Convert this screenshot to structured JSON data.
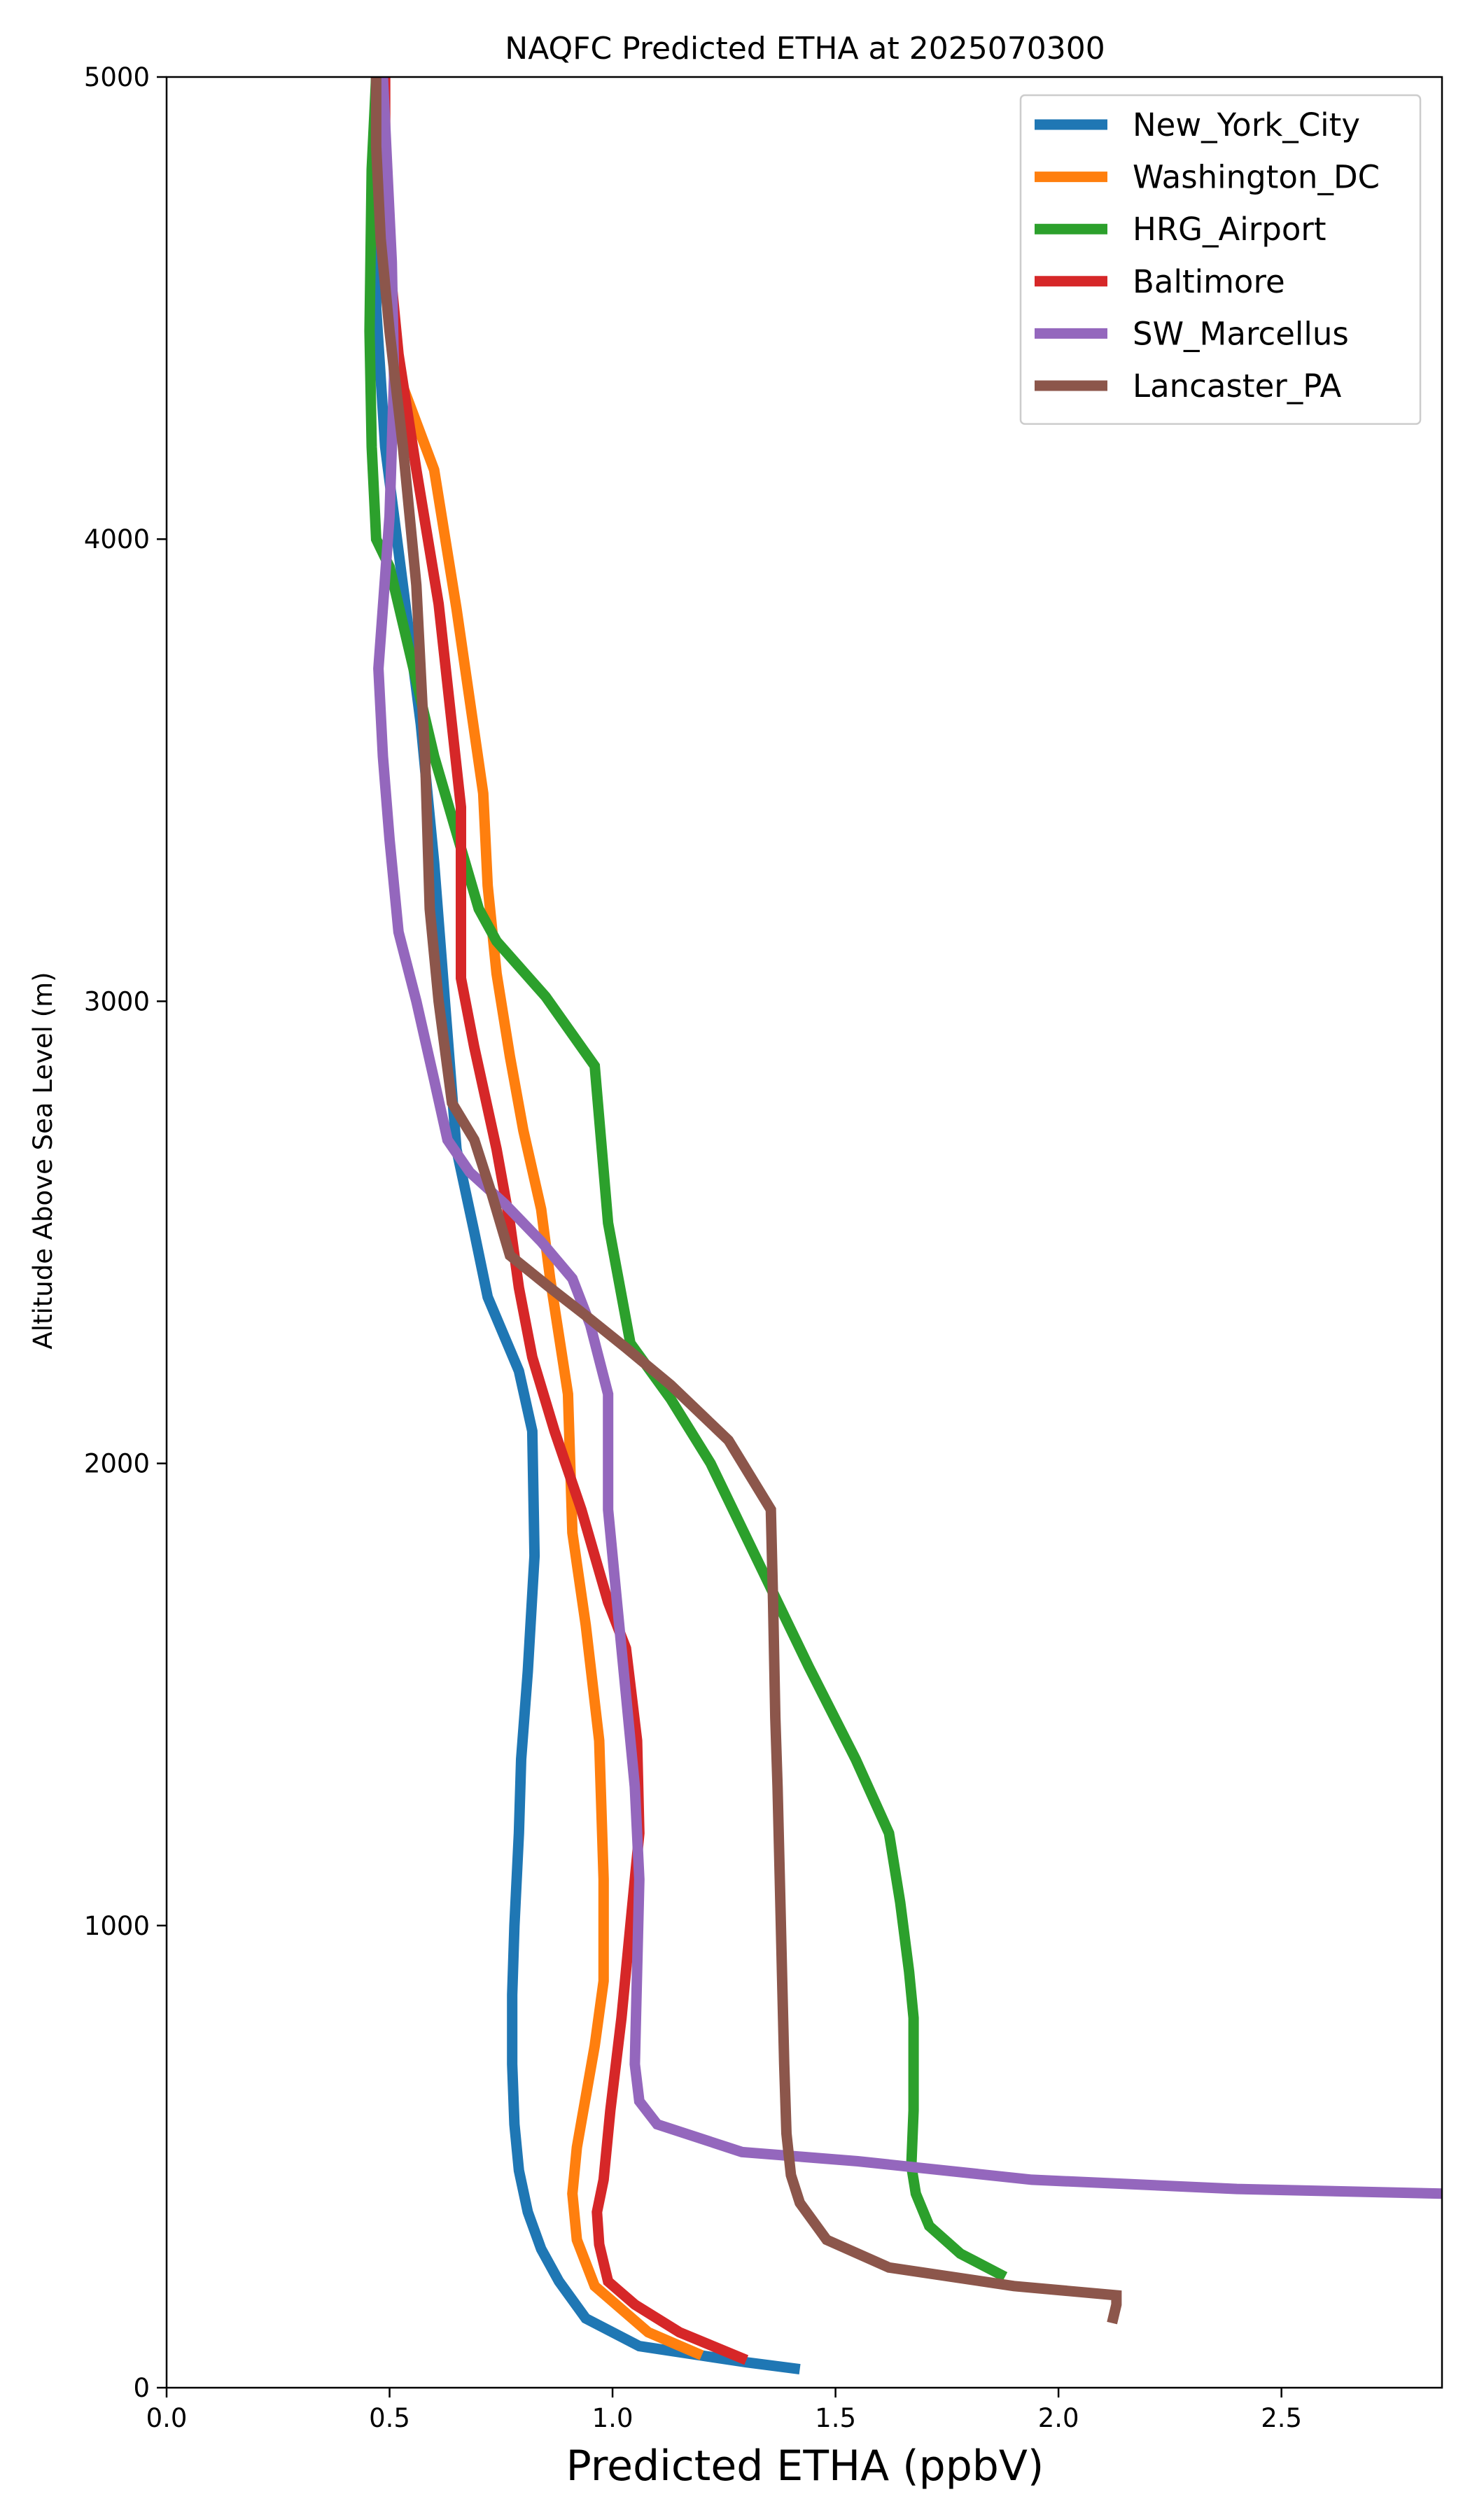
{
  "chart_data": {
    "type": "line",
    "title": "NAQFC Predicted ETHA at 2025070300",
    "xlabel": "Predicted ETHA (ppbV)",
    "ylabel": "Altitude Above Sea Level (m)",
    "xlim": [
      0.0,
      2.86
    ],
    "ylim": [
      0,
      5000
    ],
    "xticks": [
      "0.0",
      "0.5",
      "1.0",
      "1.5",
      "2.0",
      "2.5"
    ],
    "yticks": [
      "0",
      "1000",
      "2000",
      "3000",
      "4000",
      "5000"
    ],
    "grid": false,
    "legend_position": "top-right",
    "series": [
      {
        "name": "New_York_City",
        "color": "#1f77b4",
        "points": [
          [
            1.42,
            40
          ],
          [
            1.3,
            55
          ],
          [
            1.06,
            90
          ],
          [
            0.94,
            150
          ],
          [
            0.88,
            230
          ],
          [
            0.84,
            300
          ],
          [
            0.81,
            380
          ],
          [
            0.79,
            470
          ],
          [
            0.78,
            570
          ],
          [
            0.775,
            700
          ],
          [
            0.775,
            850
          ],
          [
            0.78,
            1000
          ],
          [
            0.79,
            1200
          ],
          [
            0.795,
            1360
          ],
          [
            0.81,
            1550
          ],
          [
            0.825,
            1800
          ],
          [
            0.82,
            2070
          ],
          [
            0.79,
            2200
          ],
          [
            0.72,
            2360
          ],
          [
            0.69,
            2500
          ],
          [
            0.65,
            2680
          ],
          [
            0.62,
            3050
          ],
          [
            0.6,
            3300
          ],
          [
            0.57,
            3600
          ],
          [
            0.53,
            3900
          ],
          [
            0.49,
            4200
          ],
          [
            0.47,
            4500
          ],
          [
            0.47,
            4800
          ],
          [
            0.47,
            5000
          ]
        ]
      },
      {
        "name": "Washington_DC",
        "color": "#ff7f0e",
        "points": [
          [
            1.2,
            70
          ],
          [
            1.08,
            120
          ],
          [
            0.96,
            220
          ],
          [
            0.92,
            320
          ],
          [
            0.91,
            420
          ],
          [
            0.92,
            520
          ],
          [
            0.96,
            740
          ],
          [
            0.98,
            880
          ],
          [
            0.98,
            1100
          ],
          [
            0.97,
            1400
          ],
          [
            0.94,
            1650
          ],
          [
            0.91,
            1850
          ],
          [
            0.9,
            2150
          ],
          [
            0.86,
            2400
          ],
          [
            0.84,
            2550
          ],
          [
            0.8,
            2720
          ],
          [
            0.77,
            2880
          ],
          [
            0.74,
            3060
          ],
          [
            0.72,
            3250
          ],
          [
            0.71,
            3450
          ],
          [
            0.65,
            3850
          ],
          [
            0.6,
            4150
          ],
          [
            0.53,
            4330
          ],
          [
            0.49,
            4600
          ],
          [
            0.47,
            4800
          ],
          [
            0.47,
            5000
          ]
        ]
      },
      {
        "name": "HRG_Airport",
        "color": "#2ca02c",
        "points": [
          [
            1.88,
            240
          ],
          [
            1.78,
            290
          ],
          [
            1.71,
            350
          ],
          [
            1.68,
            420
          ],
          [
            1.67,
            480
          ],
          [
            1.675,
            600
          ],
          [
            1.675,
            800
          ],
          [
            1.665,
            900
          ],
          [
            1.645,
            1050
          ],
          [
            1.62,
            1200
          ],
          [
            1.545,
            1360
          ],
          [
            1.44,
            1560
          ],
          [
            1.34,
            1760
          ],
          [
            1.22,
            2000
          ],
          [
            1.13,
            2140
          ],
          [
            1.04,
            2260
          ],
          [
            0.99,
            2520
          ],
          [
            0.96,
            2860
          ],
          [
            0.85,
            3010
          ],
          [
            0.74,
            3130
          ],
          [
            0.7,
            3200
          ],
          [
            0.6,
            3530
          ],
          [
            0.5,
            3940
          ],
          [
            0.47,
            4000
          ],
          [
            0.46,
            4200
          ],
          [
            0.455,
            4450
          ],
          [
            0.46,
            4800
          ],
          [
            0.47,
            5000
          ]
        ]
      },
      {
        "name": "Baltimore",
        "color": "#d62728",
        "points": [
          [
            1.3,
            60
          ],
          [
            1.15,
            120
          ],
          [
            1.05,
            180
          ],
          [
            0.99,
            230
          ],
          [
            0.97,
            310
          ],
          [
            0.965,
            380
          ],
          [
            0.98,
            450
          ],
          [
            0.995,
            600
          ],
          [
            1.02,
            800
          ],
          [
            1.04,
            1000
          ],
          [
            1.06,
            1200
          ],
          [
            1.055,
            1400
          ],
          [
            1.03,
            1600
          ],
          [
            0.99,
            1700
          ],
          [
            0.93,
            1900
          ],
          [
            0.87,
            2070
          ],
          [
            0.82,
            2230
          ],
          [
            0.79,
            2380
          ],
          [
            0.77,
            2520
          ],
          [
            0.74,
            2680
          ],
          [
            0.69,
            2900
          ],
          [
            0.66,
            3050
          ],
          [
            0.66,
            3420
          ],
          [
            0.61,
            3860
          ],
          [
            0.56,
            4150
          ],
          [
            0.52,
            4400
          ],
          [
            0.5,
            4600
          ],
          [
            0.49,
            4800
          ],
          [
            0.49,
            5000
          ]
        ]
      },
      {
        "name": "SW_Marcellus",
        "color": "#9467bd",
        "points": [
          [
            2.86,
            420
          ],
          [
            2.4,
            430
          ],
          [
            1.94,
            450
          ],
          [
            1.55,
            490
          ],
          [
            1.29,
            510
          ],
          [
            1.1,
            570
          ],
          [
            1.06,
            620
          ],
          [
            1.05,
            700
          ],
          [
            1.055,
            900
          ],
          [
            1.06,
            1100
          ],
          [
            1.05,
            1300
          ],
          [
            1.03,
            1500
          ],
          [
            1.01,
            1700
          ],
          [
            0.99,
            1900
          ],
          [
            0.99,
            2150
          ],
          [
            0.95,
            2300
          ],
          [
            0.91,
            2400
          ],
          [
            0.84,
            2480
          ],
          [
            0.76,
            2560
          ],
          [
            0.68,
            2630
          ],
          [
            0.63,
            2700
          ],
          [
            0.6,
            2830
          ],
          [
            0.56,
            3000
          ],
          [
            0.52,
            3150
          ],
          [
            0.5,
            3350
          ],
          [
            0.485,
            3530
          ],
          [
            0.475,
            3720
          ],
          [
            0.5,
            4050
          ],
          [
            0.51,
            4350
          ],
          [
            0.505,
            4600
          ],
          [
            0.495,
            4800
          ],
          [
            0.485,
            5000
          ]
        ]
      },
      {
        "name": "Lancaster_PA",
        "color": "#8c564b",
        "points": [
          [
            2.12,
            140
          ],
          [
            2.13,
            180
          ],
          [
            2.13,
            200
          ],
          [
            1.9,
            220
          ],
          [
            1.62,
            260
          ],
          [
            1.48,
            320
          ],
          [
            1.42,
            400
          ],
          [
            1.4,
            460
          ],
          [
            1.39,
            550
          ],
          [
            1.385,
            700
          ],
          [
            1.38,
            900
          ],
          [
            1.375,
            1100
          ],
          [
            1.37,
            1300
          ],
          [
            1.365,
            1450
          ],
          [
            1.36,
            1700
          ],
          [
            1.355,
            1900
          ],
          [
            1.26,
            2050
          ],
          [
            1.13,
            2170
          ],
          [
            1.03,
            2250
          ],
          [
            0.94,
            2320
          ],
          [
            0.86,
            2380
          ],
          [
            0.77,
            2450
          ],
          [
            0.73,
            2580
          ],
          [
            0.69,
            2700
          ],
          [
            0.64,
            2780
          ],
          [
            0.61,
            3000
          ],
          [
            0.59,
            3200
          ],
          [
            0.58,
            3520
          ],
          [
            0.56,
            3900
          ],
          [
            0.53,
            4200
          ],
          [
            0.5,
            4450
          ],
          [
            0.48,
            4650
          ],
          [
            0.47,
            4850
          ],
          [
            0.47,
            5000
          ]
        ]
      }
    ]
  }
}
